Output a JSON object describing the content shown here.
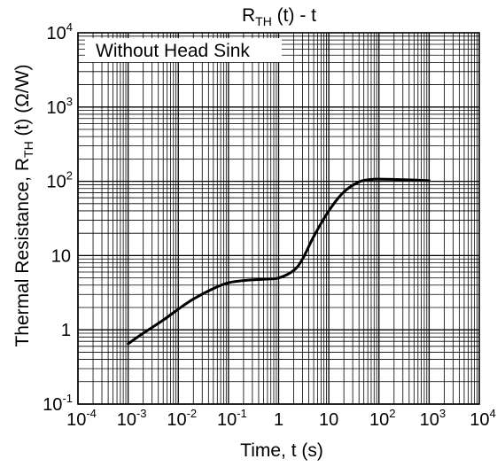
{
  "chart_data": {
    "type": "line",
    "title": {
      "main": "R",
      "sub": "TH",
      "rest": " (t) - t"
    },
    "xlabel": "Time,  t (s)",
    "ylabel": {
      "main": "Thermal Resistance, R",
      "sub": "TH",
      "rest": " (t) (Ω/W)"
    },
    "x_scale": "log",
    "y_scale": "log",
    "xlim": [
      0.0001,
      10000
    ],
    "ylim": [
      0.1,
      10000
    ],
    "grid": true,
    "x_ticks": [
      {
        "base": "10",
        "exp": "-4"
      },
      {
        "base": "10",
        "exp": "-3"
      },
      {
        "base": "10",
        "exp": "-2"
      },
      {
        "base": "10",
        "exp": "-1"
      },
      {
        "base": "1",
        "exp": ""
      },
      {
        "base": "10",
        "exp": ""
      },
      {
        "base": "10",
        "exp": "2"
      },
      {
        "base": "10",
        "exp": "3"
      },
      {
        "base": "10",
        "exp": "4"
      }
    ],
    "y_ticks": [
      {
        "base": "10",
        "exp": "-1"
      },
      {
        "base": "1",
        "exp": ""
      },
      {
        "base": "10",
        "exp": ""
      },
      {
        "base": "10",
        "exp": "2"
      },
      {
        "base": "10",
        "exp": "3"
      },
      {
        "base": "10",
        "exp": "4"
      }
    ],
    "annotation": "Without Head Sink",
    "series": [
      {
        "x": [
          0.001,
          0.002,
          0.005,
          0.01,
          0.02,
          0.05,
          0.1,
          0.2,
          0.5,
          1,
          2,
          3,
          5,
          10,
          20,
          40,
          70,
          100,
          200,
          500,
          1000
        ],
        "y": [
          0.65,
          0.9,
          1.35,
          1.9,
          2.6,
          3.6,
          4.3,
          4.6,
          4.8,
          5.0,
          6.3,
          9.0,
          18,
          40,
          72,
          98,
          106,
          107,
          106,
          104,
          102
        ]
      }
    ]
  }
}
